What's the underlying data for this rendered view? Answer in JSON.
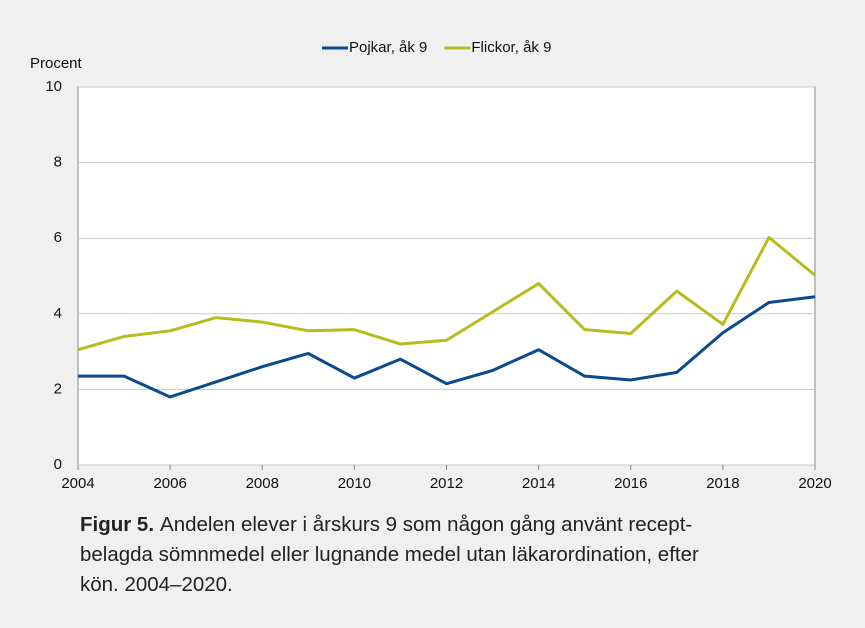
{
  "chart_data": {
    "type": "line",
    "y_label": "Procent",
    "x": [
      2004,
      2005,
      2006,
      2007,
      2008,
      2009,
      2010,
      2011,
      2012,
      2013,
      2014,
      2015,
      2016,
      2017,
      2018,
      2019,
      2020
    ],
    "series": [
      {
        "name": "Pojkar, åk 9",
        "color": "#0b4a8c",
        "values": [
          2.35,
          2.35,
          1.8,
          2.2,
          2.6,
          2.95,
          2.3,
          2.8,
          2.15,
          2.5,
          3.05,
          2.35,
          2.25,
          2.45,
          3.5,
          4.3,
          4.45
        ]
      },
      {
        "name": "Flickor, åk 9",
        "color": "#b6bd1d",
        "values": [
          3.05,
          3.4,
          3.55,
          3.9,
          3.78,
          3.55,
          3.58,
          3.2,
          3.3,
          4.05,
          4.8,
          3.58,
          3.48,
          4.6,
          3.72,
          6.02,
          5.02
        ]
      }
    ],
    "xlim": [
      2004,
      2020
    ],
    "xticks": [
      2004,
      2006,
      2008,
      2010,
      2012,
      2014,
      2016,
      2018,
      2020
    ],
    "ylim": [
      0,
      10
    ],
    "yticks": [
      0,
      2,
      4,
      6,
      8,
      10
    ],
    "grid": true,
    "legend": "top"
  },
  "caption": {
    "label": "Figur 5.",
    "lines": [
      "Andelen elever i årskurs 9 som någon gång använt recept-",
      "belagda sömnmedel eller lugnande medel utan läkarordination, efter",
      "kön. 2004–2020."
    ]
  }
}
